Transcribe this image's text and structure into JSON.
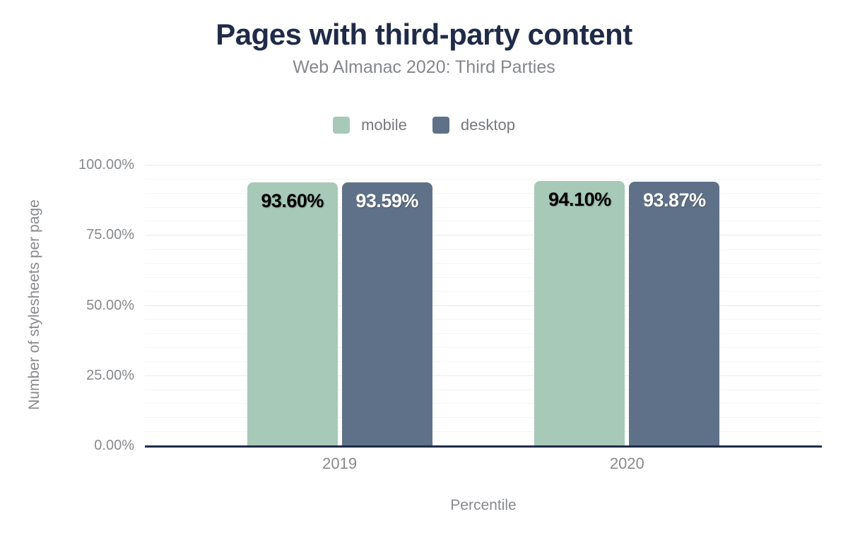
{
  "title": "Pages with third-party content",
  "subtitle": "Web Almanac 2020: Third Parties",
  "colors": {
    "background": "#ffffff",
    "title": "#1f2b47",
    "subtitle": "#85878b",
    "muted_text": "#87898c",
    "axis": "#1f2b47",
    "mobile": "#a6c9b8",
    "desktop": "#5f7189"
  },
  "chart_data": {
    "type": "bar",
    "categories": [
      "2019",
      "2020"
    ],
    "series": [
      {
        "name": "mobile",
        "color": "#a6c9b8",
        "label_color": "#000000",
        "values": [
          93.6,
          94.1
        ],
        "labels": [
          "93.60%",
          "94.10%"
        ]
      },
      {
        "name": "desktop",
        "color": "#5f7189",
        "label_color": "#ffffff",
        "values": [
          93.59,
          93.87
        ],
        "labels": [
          "93.59%",
          "93.87%"
        ]
      }
    ],
    "title": "Pages with third-party content",
    "subtitle": "Web Almanac 2020: Third Parties",
    "xlabel": "Percentile",
    "ylabel": "Number of stylesheets per page",
    "ylim": [
      0,
      100
    ],
    "yticks": [
      {
        "value": 0,
        "label": "0.00%"
      },
      {
        "value": 25,
        "label": "25.00%"
      },
      {
        "value": 50,
        "label": "50.00%"
      },
      {
        "value": 75,
        "label": "75.00%"
      },
      {
        "value": 100,
        "label": "100.00%"
      }
    ],
    "grid": {
      "minor_step": 5,
      "major_step": 25,
      "minor_color": "#f4f4f4",
      "major_color": "#e9e9e9"
    },
    "legend_position": "top",
    "legend": [
      {
        "label": "mobile",
        "color": "#a6c9b8"
      },
      {
        "label": "desktop",
        "color": "#5f7189"
      }
    ]
  }
}
